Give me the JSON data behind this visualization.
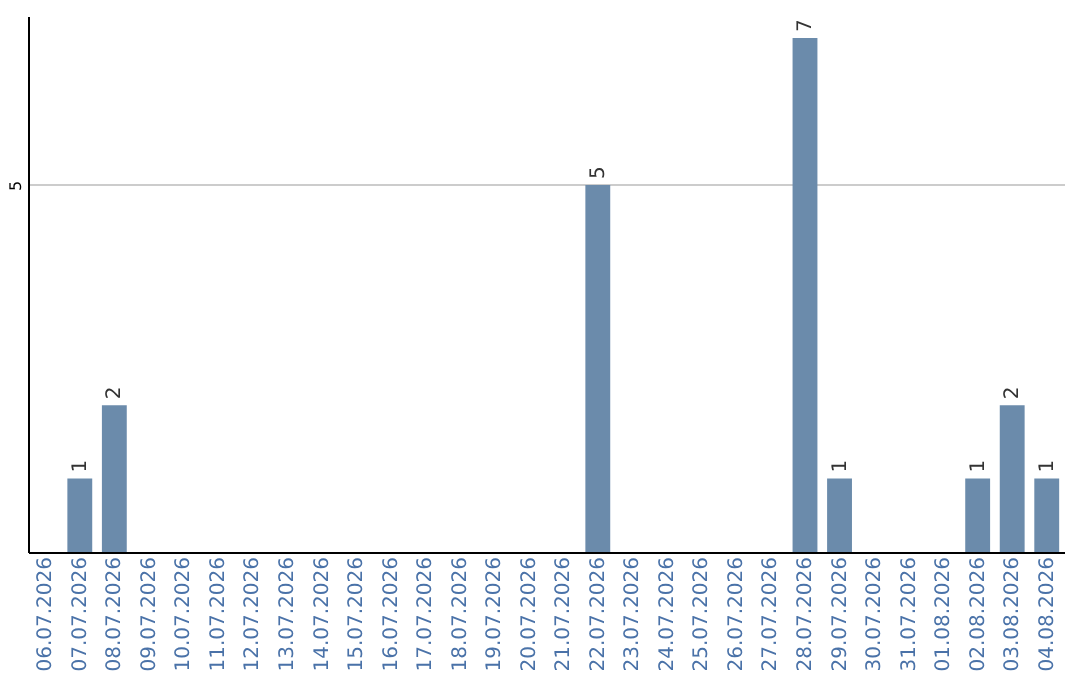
{
  "chart_data": {
    "type": "bar",
    "categories": [
      "06.07.2026",
      "07.07.2026",
      "08.07.2026",
      "09.07.2026",
      "10.07.2026",
      "11.07.2026",
      "12.07.2026",
      "13.07.2026",
      "14.07.2026",
      "15.07.2026",
      "16.07.2026",
      "17.07.2026",
      "18.07.2026",
      "19.07.2026",
      "20.07.2026",
      "21.07.2026",
      "22.07.2026",
      "23.07.2026",
      "24.07.2026",
      "25.07.2026",
      "26.07.2026",
      "27.07.2026",
      "28.07.2026",
      "29.07.2026",
      "30.07.2026",
      "31.07.2026",
      "01.08.2026",
      "02.08.2026",
      "03.08.2026",
      "04.08.2026"
    ],
    "values": [
      0,
      1,
      2,
      0,
      0,
      0,
      0,
      0,
      0,
      0,
      0,
      0,
      0,
      0,
      0,
      0,
      5,
      0,
      0,
      0,
      0,
      0,
      7,
      1,
      0,
      0,
      0,
      1,
      2,
      1
    ],
    "value_labels": [
      null,
      "1",
      "2",
      null,
      null,
      null,
      null,
      null,
      null,
      null,
      null,
      null,
      null,
      null,
      null,
      null,
      "5",
      null,
      null,
      null,
      null,
      null,
      "7",
      "1",
      null,
      null,
      null,
      "1",
      "2",
      "1"
    ],
    "color": "#6b8bab",
    "ylim": [
      0,
      7.3
    ],
    "yticks": [
      5
    ],
    "grid": "y"
  }
}
